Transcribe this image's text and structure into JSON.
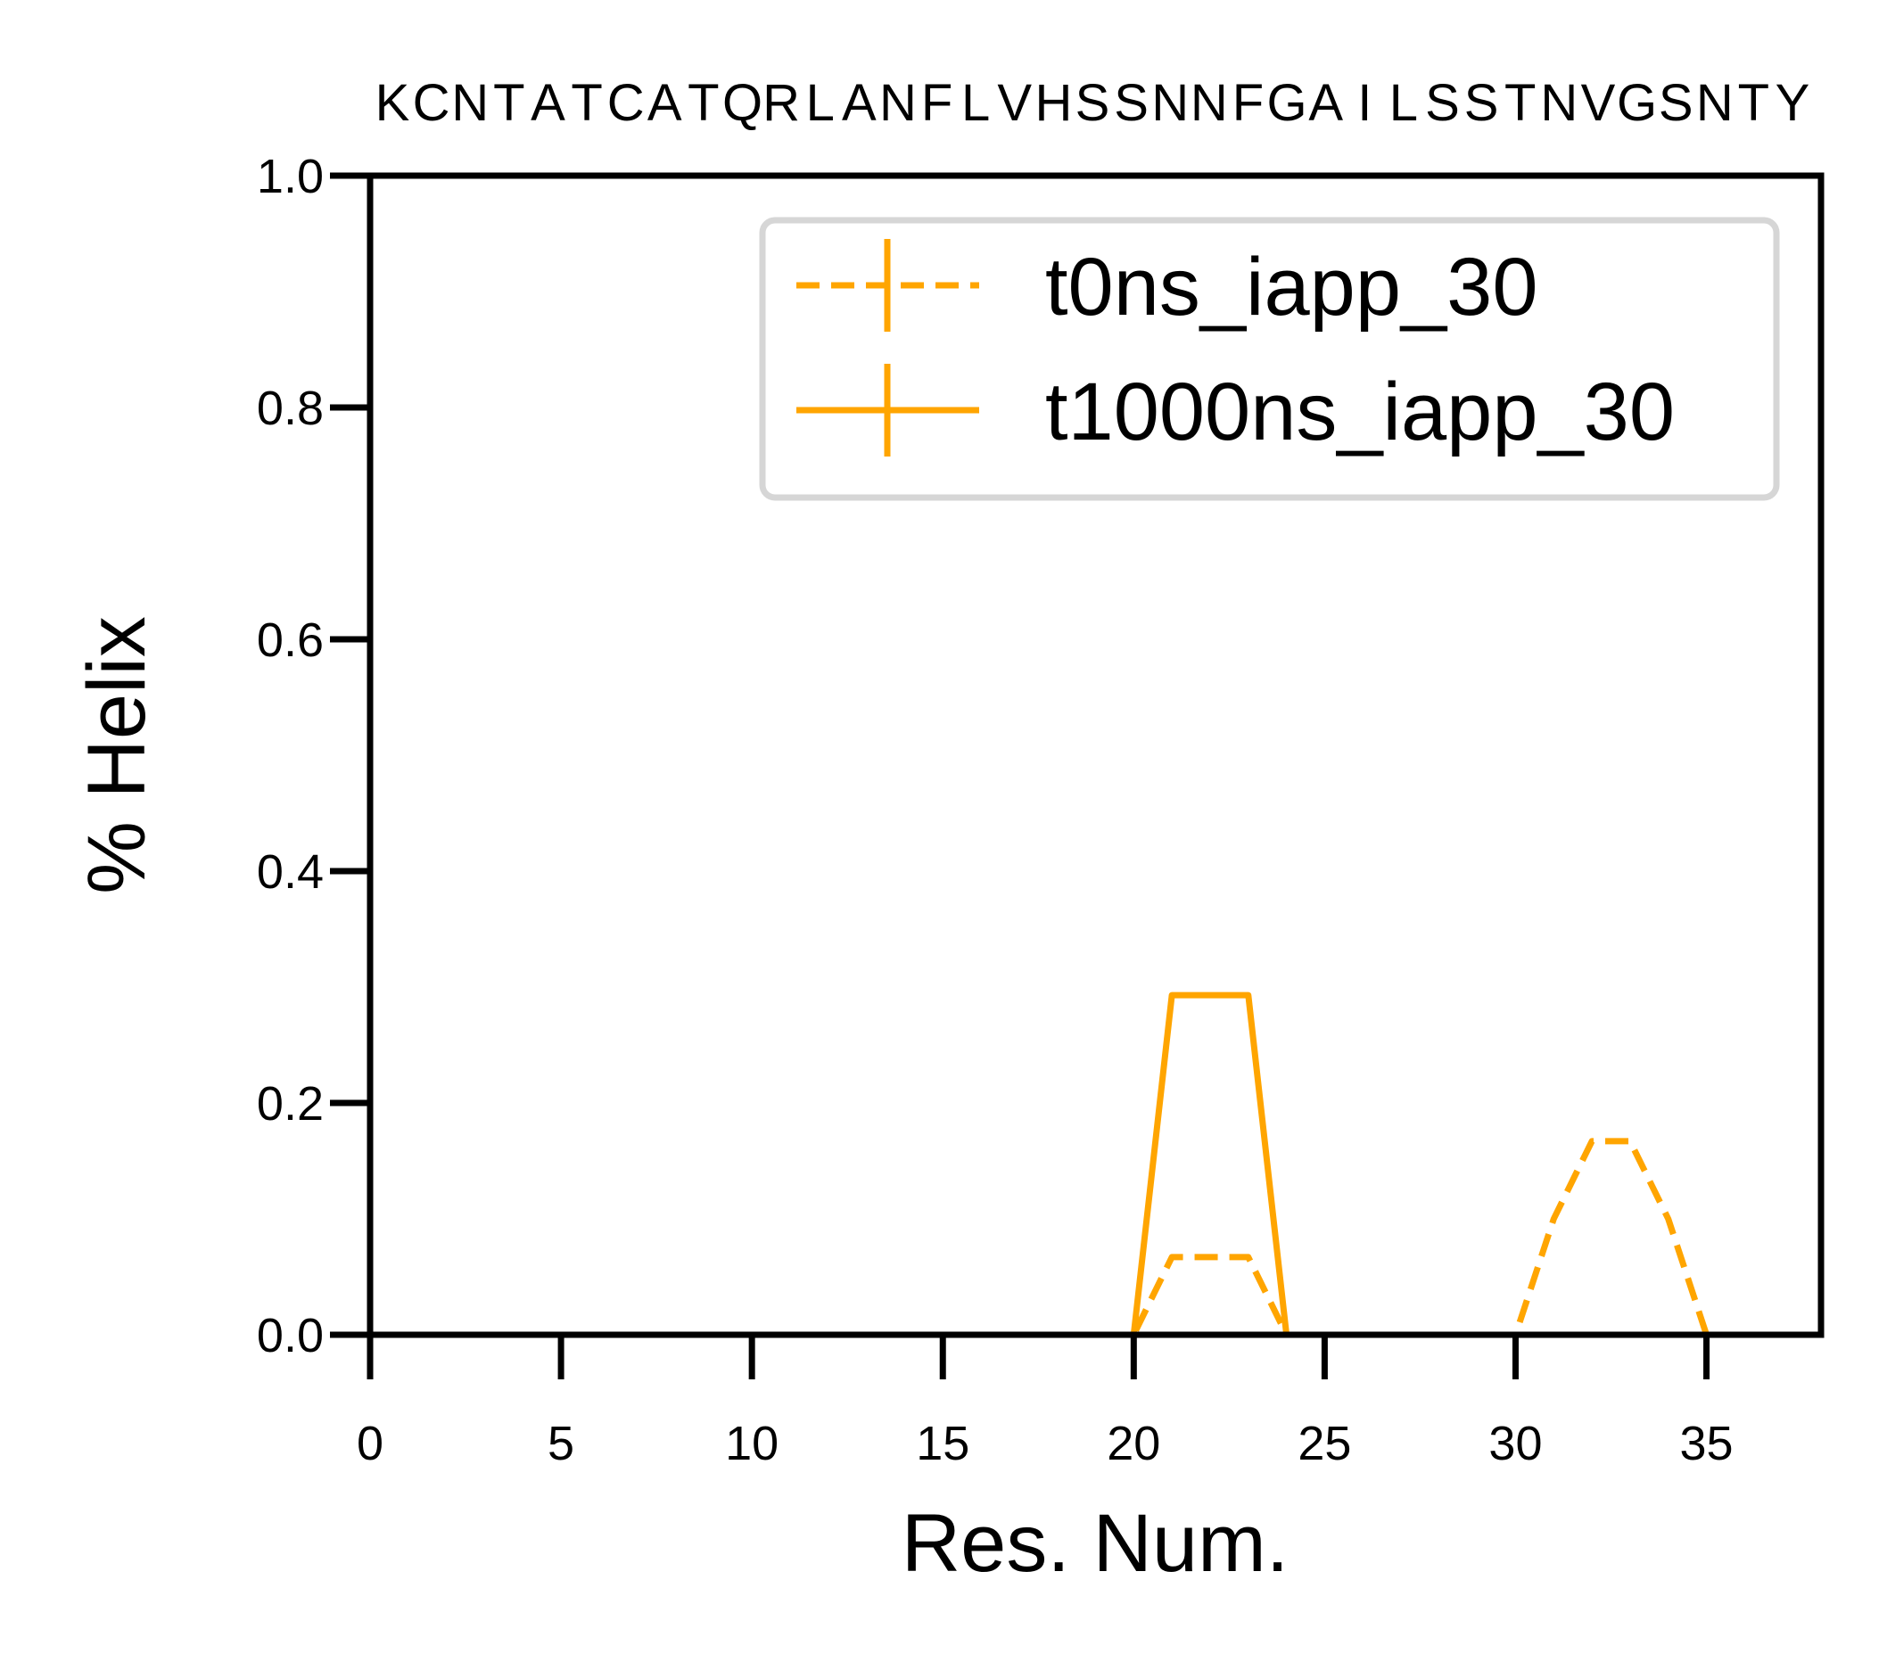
{
  "chart_data": {
    "type": "line",
    "title": "",
    "sequence": "KCNTATCATQRLANFLVHSSNNFGAILSSTNVGSNTY",
    "xlabel": "Res. Num.",
    "ylabel": "% Helix",
    "xlim": [
      0,
      38
    ],
    "ylim": [
      0.0,
      1.0
    ],
    "xticks": [
      0,
      5,
      10,
      15,
      20,
      25,
      30,
      35
    ],
    "xtick_labels": [
      "0",
      "5",
      "10",
      "15",
      "20",
      "25",
      "30",
      "35"
    ],
    "yticks": [
      0.0,
      0.2,
      0.4,
      0.6,
      0.8,
      1.0
    ],
    "ytick_labels": [
      "0.0",
      "0.2",
      "0.4",
      "0.6",
      "0.8",
      "1.0"
    ],
    "grid": false,
    "legend_position": "top-right",
    "x": [
      1,
      2,
      3,
      4,
      5,
      6,
      7,
      8,
      9,
      10,
      11,
      12,
      13,
      14,
      15,
      16,
      17,
      18,
      19,
      20,
      21,
      22,
      23,
      24,
      25,
      26,
      27,
      28,
      29,
      30,
      31,
      32,
      33,
      34,
      35,
      36,
      37
    ],
    "series": [
      {
        "name": "t0ns_iapp_30",
        "color": "#FFA500",
        "line_style": "dashed",
        "values": [
          0,
          0,
          0,
          0,
          0,
          0,
          0,
          0,
          0,
          0,
          0,
          0,
          0,
          0,
          0,
          0,
          0,
          0,
          0,
          0,
          0.067,
          0.067,
          0.067,
          0,
          0,
          0,
          0,
          0,
          0,
          0,
          0.1,
          0.167,
          0.167,
          0.1,
          0,
          0,
          0
        ]
      },
      {
        "name": "t1000ns_iapp_30",
        "color": "#FFA500",
        "line_style": "solid",
        "values": [
          0,
          0,
          0,
          0,
          0,
          0,
          0,
          0,
          0,
          0,
          0,
          0,
          0,
          0,
          0,
          0,
          0,
          0,
          0,
          0,
          0.293,
          0.293,
          0.293,
          0,
          0,
          0,
          0,
          0,
          0,
          0,
          0,
          0,
          0,
          0,
          0,
          0,
          0
        ]
      }
    ]
  }
}
